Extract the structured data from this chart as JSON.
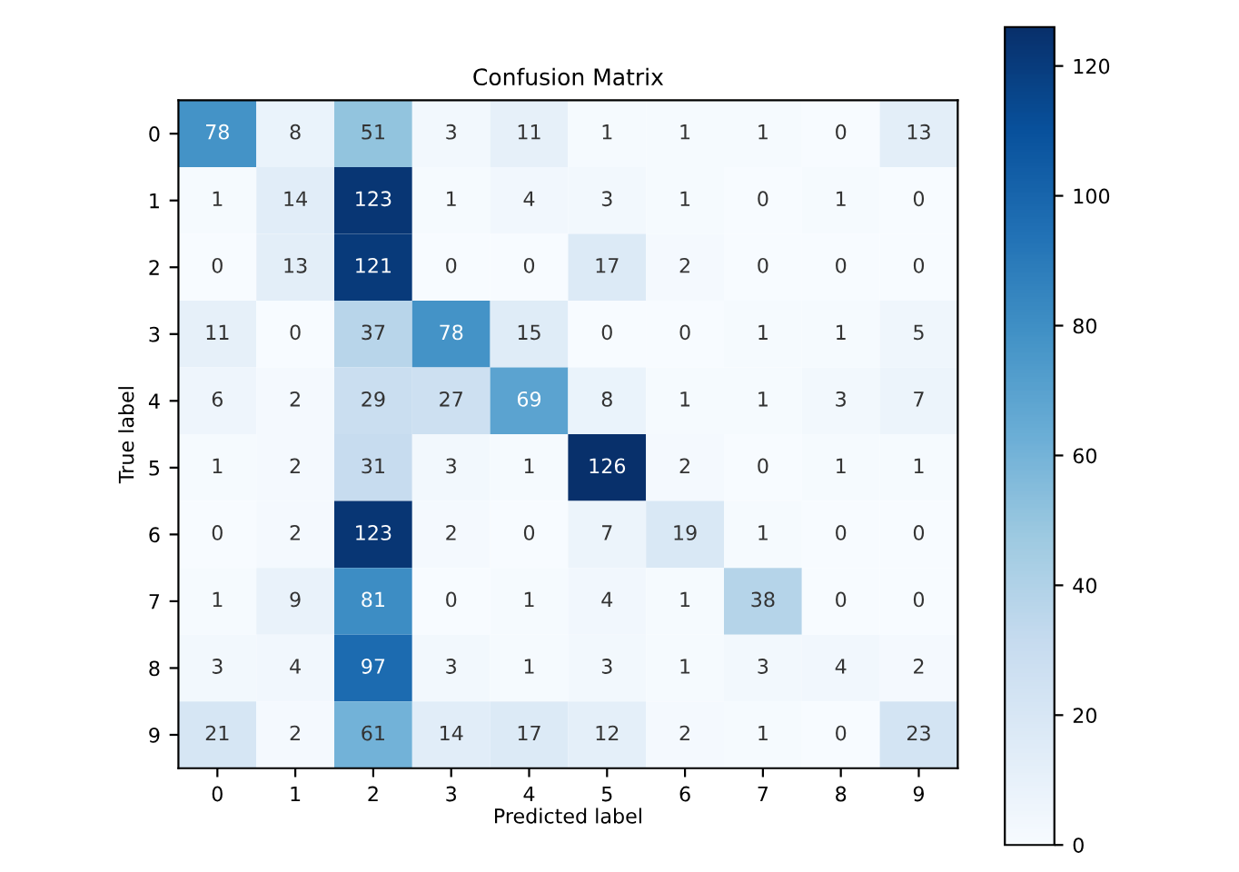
{
  "chart_data": {
    "type": "heatmap",
    "title": "Confusion Matrix",
    "xlabel": "Predicted label",
    "ylabel": "True label",
    "categories": [
      "0",
      "1",
      "2",
      "3",
      "4",
      "5",
      "6",
      "7",
      "8",
      "9"
    ],
    "y_categories": [
      "0",
      "1",
      "2",
      "3",
      "4",
      "5",
      "6",
      "7",
      "8",
      "9"
    ],
    "cells": [
      [
        78,
        8,
        51,
        3,
        11,
        1,
        1,
        1,
        0,
        13
      ],
      [
        1,
        14,
        123,
        1,
        4,
        3,
        1,
        0,
        1,
        0
      ],
      [
        0,
        13,
        121,
        0,
        0,
        17,
        2,
        0,
        0,
        0
      ],
      [
        11,
        0,
        37,
        78,
        15,
        0,
        0,
        1,
        1,
        5
      ],
      [
        6,
        2,
        29,
        27,
        69,
        8,
        1,
        1,
        3,
        7
      ],
      [
        1,
        2,
        31,
        3,
        1,
        126,
        2,
        0,
        1,
        1
      ],
      [
        0,
        2,
        123,
        2,
        0,
        7,
        19,
        1,
        0,
        0
      ],
      [
        1,
        9,
        81,
        0,
        1,
        4,
        1,
        38,
        0,
        0
      ],
      [
        3,
        4,
        97,
        3,
        1,
        3,
        1,
        3,
        4,
        2
      ],
      [
        21,
        2,
        61,
        14,
        17,
        12,
        2,
        1,
        0,
        23
      ]
    ],
    "data_labels": true,
    "clim": [
      0,
      126
    ],
    "cticks": [
      0,
      20,
      40,
      60,
      80,
      100,
      120
    ]
  }
}
